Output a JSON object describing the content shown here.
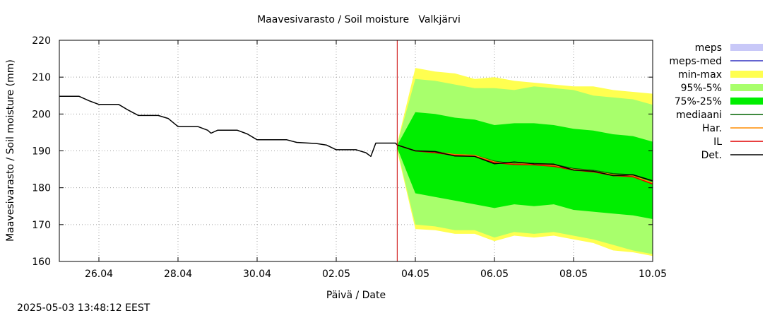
{
  "chart_data": {
    "type": "area",
    "title": "Maavesivarasto / Soil moisture   Valkjärvi",
    "xlabel": "Päivä / Date",
    "ylabel": "Maavesivarasto / Soil moisture (mm)",
    "xlim": [
      "2025-04-25",
      "2025-05-10"
    ],
    "ylim": [
      160,
      220
    ],
    "yticks": [
      160,
      170,
      180,
      190,
      200,
      210,
      220
    ],
    "xticks": [
      "2025-04-26",
      "2025-04-28",
      "2025-04-30",
      "2025-05-02",
      "2025-05-04",
      "2025-05-06",
      "2025-05-08",
      "2025-05-10"
    ],
    "xtick_labels": [
      "26.04",
      "28.04",
      "30.04",
      "02.05",
      "04.05",
      "06.05",
      "08.05",
      "10.05"
    ],
    "grid": true,
    "legend": "outside-right",
    "forecast_start": "2025-05-03T13:00",
    "colors": {
      "meps": "#c8c8f8",
      "meps_med": "#3030c0",
      "minmax": "#ffff50",
      "p95_5": "#a8ff6c",
      "p75_25": "#00ee00",
      "mediaani": "#006400",
      "har": "#ff8c00",
      "il": "#e00000",
      "det": "#000000",
      "now_line": "#cc0000"
    },
    "legend_entries": [
      {
        "key": "meps",
        "label": "meps",
        "kind": "box"
      },
      {
        "key": "meps_med",
        "label": "meps-med",
        "kind": "line"
      },
      {
        "key": "minmax",
        "label": "min-max",
        "kind": "box"
      },
      {
        "key": "p95_5",
        "label": "95%-5%",
        "kind": "box"
      },
      {
        "key": "p75_25",
        "label": "75%-25%",
        "kind": "box"
      },
      {
        "key": "mediaani",
        "label": "mediaani",
        "kind": "line"
      },
      {
        "key": "har",
        "label": "Har.",
        "kind": "line"
      },
      {
        "key": "il",
        "label": "IL",
        "kind": "line"
      },
      {
        "key": "det",
        "label": "Det.",
        "kind": "line"
      }
    ],
    "det_history": {
      "x": [
        "2025-04-25T00:00",
        "2025-04-25T12:00",
        "2025-04-25T18:00",
        "2025-04-26T00:00",
        "2025-04-26T12:00",
        "2025-04-26T18:00",
        "2025-04-27T00:00",
        "2025-04-27T12:00",
        "2025-04-27T18:00",
        "2025-04-28T00:00",
        "2025-04-28T12:00",
        "2025-04-28T18:00",
        "2025-04-28T20:00",
        "2025-04-29T00:00",
        "2025-04-29T12:00",
        "2025-04-29T18:00",
        "2025-04-30T00:00",
        "2025-04-30T12:00",
        "2025-04-30T18:00",
        "2025-05-01T00:00",
        "2025-05-01T12:00",
        "2025-05-01T18:00",
        "2025-05-02T00:00",
        "2025-05-02T12:00",
        "2025-05-02T18:00",
        "2025-05-02T21:00",
        "2025-05-03T00:00",
        "2025-05-03T12:00",
        "2025-05-03T13:00"
      ],
      "y": [
        204.8,
        204.8,
        203.6,
        202.6,
        202.6,
        201.0,
        199.6,
        199.6,
        198.8,
        196.6,
        196.6,
        195.6,
        194.8,
        195.6,
        195.6,
        194.6,
        193.0,
        193.0,
        193.0,
        192.3,
        192.0,
        191.6,
        190.3,
        190.3,
        189.5,
        188.5,
        192.1,
        192.1,
        191.6
      ]
    },
    "forecast": {
      "x": [
        "2025-05-03T13:00",
        "2025-05-04T00:00",
        "2025-05-04T12:00",
        "2025-05-05T00:00",
        "2025-05-05T12:00",
        "2025-05-06T00:00",
        "2025-05-06T12:00",
        "2025-05-07T00:00",
        "2025-05-07T12:00",
        "2025-05-08T00:00",
        "2025-05-08T12:00",
        "2025-05-09T00:00",
        "2025-05-09T12:00",
        "2025-05-10T00:00"
      ],
      "min": [
        190.0,
        168.8,
        168.5,
        167.5,
        167.5,
        165.5,
        167.0,
        166.5,
        167.0,
        166.0,
        165.0,
        163.0,
        162.5,
        161.5
      ],
      "max": [
        192.0,
        212.5,
        211.5,
        211.0,
        209.5,
        210.0,
        209.0,
        208.5,
        208.0,
        207.5,
        207.5,
        206.5,
        206.0,
        205.5
      ],
      "p5": [
        190.5,
        170.0,
        169.5,
        168.5,
        168.5,
        166.5,
        168.0,
        167.5,
        168.0,
        167.0,
        166.0,
        164.5,
        163.0,
        162.0
      ],
      "p95": [
        191.8,
        209.5,
        209.0,
        208.0,
        207.0,
        207.0,
        206.5,
        207.5,
        207.0,
        206.5,
        205.0,
        204.5,
        204.0,
        202.5
      ],
      "p25": [
        190.8,
        178.5,
        177.5,
        176.5,
        175.5,
        174.5,
        175.5,
        175.0,
        175.5,
        174.0,
        173.5,
        173.0,
        172.5,
        171.5
      ],
      "p75": [
        191.5,
        200.5,
        200.0,
        199.0,
        198.5,
        197.0,
        197.5,
        197.5,
        197.0,
        196.0,
        195.5,
        194.5,
        194.0,
        192.5
      ],
      "median": [
        191.6,
        190.0,
        189.8,
        189.0,
        188.8,
        187.2,
        186.5,
        186.6,
        186.3,
        185.2,
        184.7,
        183.8,
        183.5,
        181.8
      ],
      "il": [
        191.6,
        190.0,
        189.5,
        188.8,
        188.5,
        186.8,
        186.3,
        186.2,
        185.8,
        184.8,
        184.3,
        183.3,
        183.0,
        181.0
      ],
      "har": [
        191.6,
        190.0,
        189.7,
        189.0,
        188.8,
        187.0,
        186.4,
        186.5,
        186.0,
        185.0,
        184.5,
        183.5,
        183.2,
        181.3
      ],
      "det": [
        191.6,
        190.0,
        189.8,
        188.6,
        188.5,
        186.5,
        187.0,
        186.5,
        186.4,
        184.8,
        184.5,
        183.3,
        183.5,
        181.9
      ]
    }
  },
  "footer": {
    "timestamp": "2025-05-03 13:48:12 EEST"
  }
}
